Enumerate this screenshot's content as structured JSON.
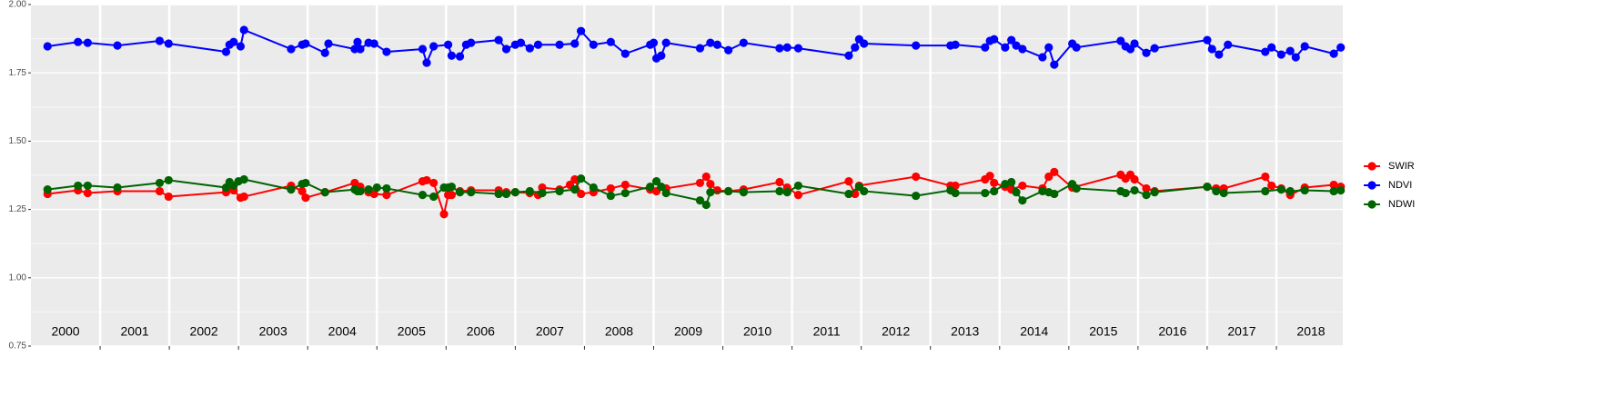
{
  "chart_data": {
    "type": "line",
    "xlim": [
      2000,
      2018.96
    ],
    "ylim": [
      0.75,
      2.0
    ],
    "yticks": [
      {
        "value": 0.75,
        "label": "0.75"
      },
      {
        "value": 1,
        "label": "1.00"
      },
      {
        "value": 1.25,
        "label": "1.25"
      },
      {
        "value": 1.5,
        "label": "1.50"
      },
      {
        "value": 1.75,
        "label": "1.75"
      },
      {
        "value": 2,
        "label": "2.00"
      }
    ],
    "y_minor_ticks": [
      0.875,
      1.125,
      1.375,
      1.625,
      1.875
    ],
    "xbreaks": [
      2001,
      2002,
      2003,
      2004,
      2005,
      2006,
      2007,
      2008,
      2009,
      2010,
      2011,
      2012,
      2013,
      2014,
      2015,
      2016,
      2017,
      2018
    ],
    "year_labels": [
      2000,
      2001,
      2002,
      2003,
      2004,
      2005,
      2006,
      2007,
      2008,
      2009,
      2010,
      2011,
      2012,
      2013,
      2014,
      2015,
      2016,
      2017,
      2018
    ],
    "grid": true,
    "legend": "right",
    "series": [
      {
        "name": "SWIR",
        "color": "#ff0000",
        "x": [
          2000.24,
          2000.68,
          2000.82,
          2001.25,
          2001.86,
          2001.99,
          2002.82,
          2002.93,
          2003.03,
          2003.08,
          2003.76,
          2003.92,
          2003.97,
          2004.25,
          2004.68,
          2004.76,
          2004.88,
          2004.96,
          2005.14,
          2005.66,
          2005.72,
          2005.82,
          2005.97,
          2006.03,
          2006.08,
          2006.2,
          2006.36,
          2006.76,
          2006.87,
          2007.0,
          2007.21,
          2007.33,
          2007.39,
          2007.64,
          2007.79,
          2007.86,
          2007.95,
          2008.13,
          2008.38,
          2008.59,
          2008.95,
          2009.04,
          2009.18,
          2009.67,
          2009.76,
          2009.82,
          2009.92,
          2010.08,
          2010.3,
          2010.82,
          2010.93,
          2011.09,
          2011.82,
          2011.91,
          2011.97,
          2012.79,
          2013.29,
          2013.36,
          2013.79,
          2013.86,
          2013.92,
          2014.08,
          2014.17,
          2014.33,
          2014.62,
          2014.71,
          2014.79,
          2015.05,
          2015.75,
          2015.82,
          2015.89,
          2015.95,
          2016.12,
          2016.24,
          2017.0,
          2017.13,
          2017.24,
          2017.84,
          2017.93,
          2018.07,
          2018.2,
          2018.41,
          2018.83,
          2018.93
        ],
        "values": [
          1.307,
          1.32,
          1.31,
          1.317,
          1.317,
          1.297,
          1.313,
          1.32,
          1.293,
          1.297,
          1.337,
          1.317,
          1.293,
          1.313,
          1.347,
          1.333,
          1.313,
          1.307,
          1.303,
          1.353,
          1.357,
          1.347,
          1.233,
          1.303,
          1.303,
          1.317,
          1.32,
          1.32,
          1.313,
          1.313,
          1.31,
          1.303,
          1.33,
          1.323,
          1.34,
          1.36,
          1.307,
          1.313,
          1.327,
          1.34,
          1.323,
          1.317,
          1.327,
          1.347,
          1.37,
          1.343,
          1.32,
          1.317,
          1.323,
          1.35,
          1.33,
          1.303,
          1.353,
          1.307,
          1.337,
          1.37,
          1.337,
          1.337,
          1.36,
          1.373,
          1.347,
          1.333,
          1.323,
          1.337,
          1.327,
          1.37,
          1.387,
          1.33,
          1.377,
          1.363,
          1.377,
          1.36,
          1.327,
          1.317,
          1.333,
          1.327,
          1.327,
          1.37,
          1.337,
          1.327,
          1.303,
          1.33,
          1.34,
          1.333
        ]
      },
      {
        "name": "NDVI",
        "color": "#0000ff",
        "x": [
          2000.24,
          2000.68,
          2000.82,
          2001.25,
          2001.86,
          2001.99,
          2002.82,
          2002.87,
          2002.93,
          2003.03,
          2003.08,
          2003.76,
          2003.92,
          2003.97,
          2004.25,
          2004.3,
          2004.68,
          2004.72,
          2004.76,
          2004.88,
          2004.96,
          2005.14,
          2005.66,
          2005.72,
          2005.82,
          2006.03,
          2006.08,
          2006.2,
          2006.29,
          2006.36,
          2006.76,
          2006.87,
          2007.0,
          2007.08,
          2007.21,
          2007.33,
          2007.64,
          2007.86,
          2007.95,
          2008.13,
          2008.38,
          2008.59,
          2008.95,
          2009.0,
          2009.04,
          2009.11,
          2009.18,
          2009.67,
          2009.82,
          2009.92,
          2010.08,
          2010.3,
          2010.82,
          2010.93,
          2011.09,
          2011.82,
          2011.91,
          2011.97,
          2012.04,
          2012.79,
          2013.29,
          2013.36,
          2013.79,
          2013.86,
          2013.92,
          2014.08,
          2014.17,
          2014.24,
          2014.33,
          2014.62,
          2014.71,
          2014.79,
          2015.05,
          2015.11,
          2015.75,
          2015.82,
          2015.89,
          2015.95,
          2016.12,
          2016.24,
          2017.0,
          2017.07,
          2017.17,
          2017.3,
          2017.84,
          2017.93,
          2018.07,
          2018.2,
          2018.28,
          2018.41,
          2018.83,
          2018.93
        ],
        "values": [
          1.847,
          1.863,
          1.86,
          1.85,
          1.867,
          1.857,
          1.827,
          1.853,
          1.863,
          1.847,
          1.907,
          1.837,
          1.853,
          1.857,
          1.823,
          1.857,
          1.837,
          1.863,
          1.837,
          1.86,
          1.857,
          1.827,
          1.837,
          1.787,
          1.847,
          1.853,
          1.813,
          1.81,
          1.853,
          1.86,
          1.87,
          1.837,
          1.853,
          1.86,
          1.84,
          1.853,
          1.853,
          1.857,
          1.903,
          1.853,
          1.863,
          1.82,
          1.853,
          1.86,
          1.803,
          1.813,
          1.86,
          1.84,
          1.86,
          1.853,
          1.833,
          1.86,
          1.84,
          1.843,
          1.84,
          1.813,
          1.843,
          1.873,
          1.857,
          1.85,
          1.85,
          1.853,
          1.843,
          1.867,
          1.873,
          1.843,
          1.87,
          1.85,
          1.837,
          1.807,
          1.843,
          1.78,
          1.857,
          1.843,
          1.867,
          1.847,
          1.837,
          1.857,
          1.823,
          1.84,
          1.87,
          1.837,
          1.817,
          1.853,
          1.827,
          1.843,
          1.817,
          1.83,
          1.807,
          1.847,
          1.82,
          1.843
        ]
      },
      {
        "name": "NDWI",
        "color": "#006400",
        "x": [
          2000.24,
          2000.68,
          2000.82,
          2001.25,
          2001.86,
          2001.99,
          2002.82,
          2002.87,
          2002.93,
          2003.0,
          2003.08,
          2003.76,
          2003.92,
          2003.97,
          2004.25,
          2004.68,
          2004.72,
          2004.76,
          2004.88,
          2005.0,
          2005.14,
          2005.66,
          2005.82,
          2005.97,
          2006.03,
          2006.08,
          2006.2,
          2006.36,
          2006.76,
          2006.87,
          2007.0,
          2007.21,
          2007.39,
          2007.64,
          2007.86,
          2007.95,
          2008.13,
          2008.38,
          2008.59,
          2008.95,
          2009.04,
          2009.11,
          2009.18,
          2009.67,
          2009.76,
          2009.82,
          2010.08,
          2010.3,
          2010.82,
          2010.93,
          2011.09,
          2011.82,
          2011.97,
          2012.04,
          2012.79,
          2013.29,
          2013.36,
          2013.79,
          2013.92,
          2014.08,
          2014.17,
          2014.24,
          2014.33,
          2014.62,
          2014.71,
          2014.79,
          2015.05,
          2015.11,
          2015.75,
          2015.82,
          2015.95,
          2016.12,
          2016.24,
          2017.0,
          2017.13,
          2017.24,
          2017.84,
          2018.07,
          2018.2,
          2018.41,
          2018.83,
          2018.93
        ],
        "values": [
          1.323,
          1.337,
          1.337,
          1.33,
          1.347,
          1.357,
          1.33,
          1.35,
          1.337,
          1.353,
          1.36,
          1.323,
          1.343,
          1.347,
          1.313,
          1.323,
          1.317,
          1.317,
          1.323,
          1.33,
          1.327,
          1.303,
          1.297,
          1.33,
          1.33,
          1.333,
          1.313,
          1.313,
          1.307,
          1.307,
          1.313,
          1.317,
          1.31,
          1.317,
          1.323,
          1.363,
          1.33,
          1.3,
          1.31,
          1.333,
          1.353,
          1.333,
          1.31,
          1.283,
          1.267,
          1.313,
          1.317,
          1.313,
          1.317,
          1.313,
          1.337,
          1.307,
          1.333,
          1.317,
          1.3,
          1.32,
          1.31,
          1.31,
          1.317,
          1.343,
          1.35,
          1.313,
          1.283,
          1.317,
          1.313,
          1.307,
          1.343,
          1.327,
          1.317,
          1.31,
          1.32,
          1.303,
          1.313,
          1.333,
          1.317,
          1.31,
          1.317,
          1.323,
          1.317,
          1.32,
          1.317,
          1.32
        ]
      }
    ]
  }
}
